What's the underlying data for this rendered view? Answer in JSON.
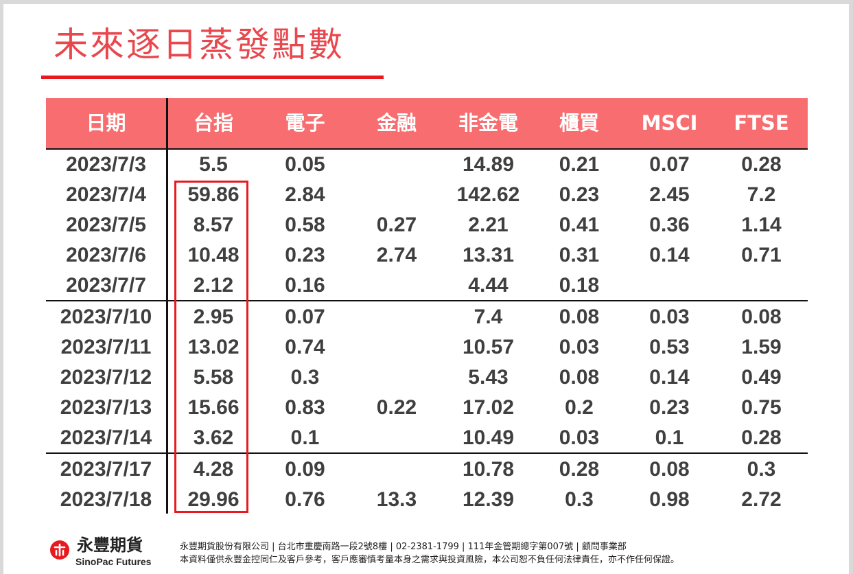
{
  "title": "未來逐日蒸發點數",
  "table": {
    "headers": [
      "日期",
      "台指",
      "電子",
      "金融",
      "非金電",
      "櫃買",
      "MSCI",
      "FTSE"
    ],
    "rows": [
      [
        "2023/7/3",
        "5.5",
        "0.05",
        "",
        "14.89",
        "0.21",
        "0.07",
        "0.28"
      ],
      [
        "2023/7/4",
        "59.86",
        "2.84",
        "",
        "142.62",
        "0.23",
        "2.45",
        "7.2"
      ],
      [
        "2023/7/5",
        "8.57",
        "0.58",
        "0.27",
        "2.21",
        "0.41",
        "0.36",
        "1.14"
      ],
      [
        "2023/7/6",
        "10.48",
        "0.23",
        "2.74",
        "13.31",
        "0.31",
        "0.14",
        "0.71"
      ],
      [
        "2023/7/7",
        "2.12",
        "0.16",
        "",
        "4.44",
        "0.18",
        "",
        ""
      ],
      [
        "2023/7/10",
        "2.95",
        "0.07",
        "",
        "7.4",
        "0.08",
        "0.03",
        "0.08"
      ],
      [
        "2023/7/11",
        "13.02",
        "0.74",
        "",
        "10.57",
        "0.03",
        "0.53",
        "1.59"
      ],
      [
        "2023/7/12",
        "5.58",
        "0.3",
        "",
        "5.43",
        "0.08",
        "0.14",
        "0.49"
      ],
      [
        "2023/7/13",
        "15.66",
        "0.83",
        "0.22",
        "17.02",
        "0.2",
        "0.23",
        "0.75"
      ],
      [
        "2023/7/14",
        "3.62",
        "0.1",
        "",
        "10.49",
        "0.03",
        "0.1",
        "0.28"
      ],
      [
        "2023/7/17",
        "4.28",
        "0.09",
        "",
        "10.78",
        "0.28",
        "0.08",
        "0.3"
      ],
      [
        "2023/7/18",
        "29.96",
        "0.76",
        "13.3",
        "12.39",
        "0.3",
        "0.98",
        "2.72"
      ]
    ]
  },
  "colors": {
    "title": "#e8474d",
    "header_bg": "#f86d6f",
    "highlight": "#e8191f"
  },
  "footer": {
    "brand_cn": "永豐期貨",
    "brand_en": "SinoPac Futures",
    "line1": "永豐期貨股份有限公司 | 台北市重慶南路一段2號8樓 | 02-2381-1799 | 111年金管期總字第007號 | 顧問事業部",
    "line2": "本資料僅供永豐金控同仁及客戶參考，客戶應審慎考量本身之需求與投資風險，本公司恕不負任何法律責任，亦不作任何保證。"
  }
}
